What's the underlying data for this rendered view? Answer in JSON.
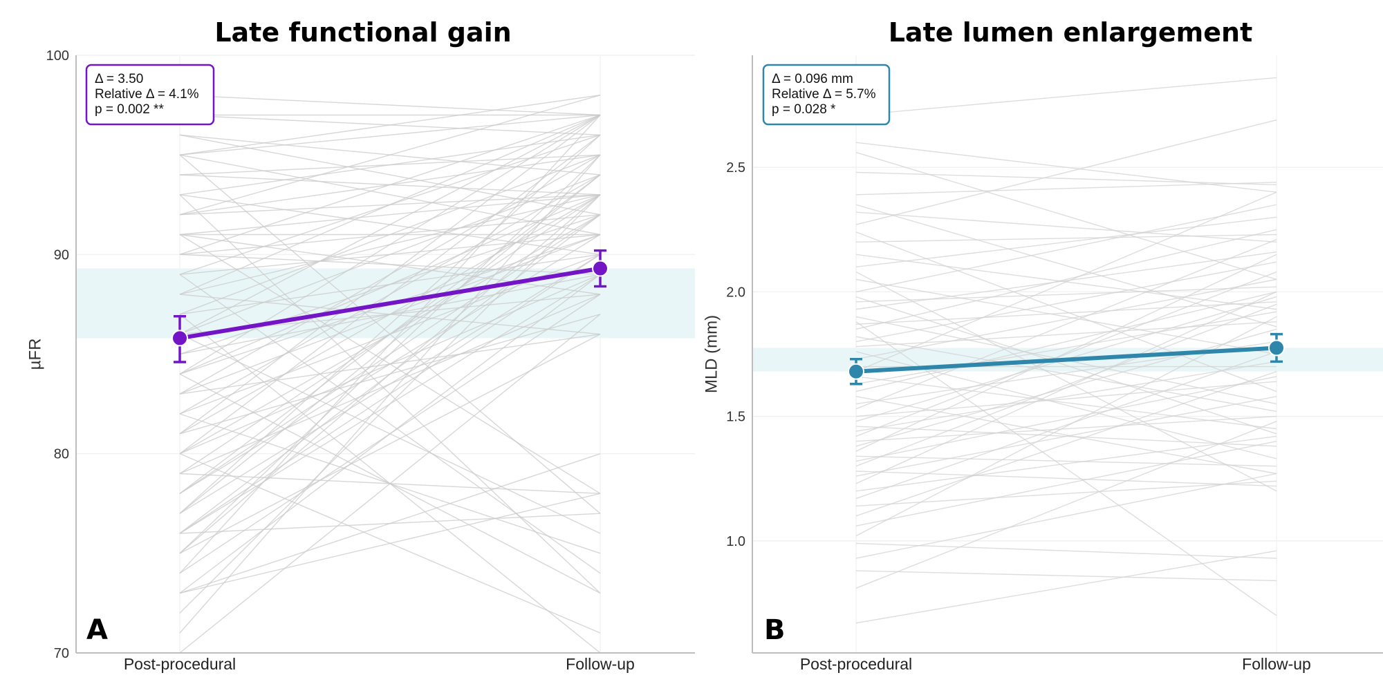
{
  "chart_data": [
    {
      "type": "line",
      "panel": "A",
      "title": "Late functional gain",
      "ylabel": "µFR",
      "xlabel": "",
      "categories": [
        "Post-procedural",
        "Follow-up"
      ],
      "ylim": [
        70,
        100
      ],
      "yticks": [
        70,
        80,
        90,
        100
      ],
      "grid": true,
      "colors": {
        "mean": "#7314c6",
        "band": "#e9f6f8",
        "individual": "#c9c9c9",
        "box": "#7314c6"
      },
      "mean_series": {
        "values": [
          85.8,
          89.3
        ],
        "ci_low": [
          84.6,
          88.4
        ],
        "ci_high": [
          86.9,
          90.2
        ]
      },
      "band": [
        85.8,
        89.3
      ],
      "stats": [
        "Δ = 3.50",
        "Relative Δ = 4.1%",
        "p = 0.002 **"
      ],
      "individual_lines": [
        [
          98,
          97
        ],
        [
          97,
          97
        ],
        [
          97,
          96
        ],
        [
          96,
          94
        ],
        [
          96,
          92
        ],
        [
          95,
          91
        ],
        [
          95,
          97
        ],
        [
          94,
          95
        ],
        [
          94,
          93
        ],
        [
          93,
          96
        ],
        [
          93,
          90
        ],
        [
          92,
          93
        ],
        [
          92,
          95
        ],
        [
          91,
          91
        ],
        [
          91,
          88
        ],
        [
          91,
          93
        ],
        [
          90,
          92
        ],
        [
          90,
          89
        ],
        [
          89,
          96
        ],
        [
          89,
          91
        ],
        [
          88,
          93
        ],
        [
          88,
          86
        ],
        [
          87,
          95
        ],
        [
          87,
          90
        ],
        [
          86,
          94
        ],
        [
          86,
          88
        ],
        [
          85,
          92
        ],
        [
          85,
          89
        ],
        [
          84,
          91
        ],
        [
          84,
          93
        ],
        [
          83,
          95
        ],
        [
          83,
          86
        ],
        [
          82,
          90
        ],
        [
          82,
          94
        ],
        [
          81,
          93
        ],
        [
          81,
          87
        ],
        [
          80,
          92
        ],
        [
          80,
          96
        ],
        [
          79,
          88
        ],
        [
          78,
          94
        ],
        [
          78,
          91
        ],
        [
          77,
          90
        ],
        [
          77,
          96
        ],
        [
          76,
          89
        ],
        [
          76,
          92
        ],
        [
          75,
          95
        ],
        [
          75,
          86
        ],
        [
          74,
          97
        ],
        [
          73,
          80
        ],
        [
          73,
          89
        ],
        [
          72,
          93
        ],
        [
          71,
          95
        ],
        [
          70,
          87
        ],
        [
          95,
          77
        ],
        [
          93,
          73
        ],
        [
          91,
          78
        ],
        [
          89,
          74
        ],
        [
          87,
          70
        ],
        [
          86,
          76
        ],
        [
          84,
          73
        ],
        [
          82,
          75
        ],
        [
          80,
          71
        ],
        [
          79,
          78
        ],
        [
          76,
          77
        ],
        [
          74,
          88
        ],
        [
          73,
          78
        ],
        [
          95,
          98
        ],
        [
          92,
          98
        ],
        [
          90,
          97
        ],
        [
          88,
          97
        ],
        [
          86,
          97
        ],
        [
          84,
          97
        ],
        [
          83,
          91
        ],
        [
          81,
          97
        ],
        [
          80,
          89
        ],
        [
          79,
          93
        ],
        [
          78,
          92
        ],
        [
          77,
          94
        ],
        [
          76,
          90
        ],
        [
          75,
          93
        ]
      ]
    },
    {
      "type": "line",
      "panel": "B",
      "title": "Late lumen enlargement",
      "ylabel": "MLD (mm)",
      "xlabel": "",
      "categories": [
        "Post-procedural",
        "Follow-up"
      ],
      "ylim": [
        0.55,
        2.95
      ],
      "yticks": [
        1.0,
        1.5,
        2.0,
        2.5
      ],
      "grid": true,
      "colors": {
        "mean": "#2e86ab",
        "band": "#e9f6f8",
        "individual": "#d2d2d2",
        "box": "#2e86ab"
      },
      "mean_series": {
        "values": [
          1.68,
          1.775
        ],
        "ci_low": [
          1.63,
          1.72
        ],
        "ci_high": [
          1.73,
          1.83
        ]
      },
      "band": [
        1.68,
        1.775
      ],
      "stats": [
        "Δ = 0.096 mm",
        "Relative Δ = 5.7%",
        "p = 0.028 *"
      ],
      "individual_lines": [
        [
          2.71,
          2.86
        ],
        [
          2.6,
          2.4
        ],
        [
          2.56,
          2.05
        ],
        [
          2.48,
          2.43
        ],
        [
          2.39,
          2.44
        ],
        [
          2.35,
          1.86
        ],
        [
          2.32,
          2.2
        ],
        [
          2.27,
          2.69
        ],
        [
          2.24,
          1.6
        ],
        [
          2.2,
          2.23
        ],
        [
          2.15,
          1.93
        ],
        [
          2.1,
          2.3
        ],
        [
          2.05,
          1.75
        ],
        [
          2.0,
          2.35
        ],
        [
          1.98,
          1.43
        ],
        [
          1.96,
          2.02
        ],
        [
          1.93,
          2.16
        ],
        [
          1.9,
          1.55
        ],
        [
          1.87,
          1.96
        ],
        [
          1.85,
          2.25
        ],
        [
          1.82,
          1.52
        ],
        [
          1.8,
          2.12
        ],
        [
          1.78,
          1.88
        ],
        [
          1.76,
          1.33
        ],
        [
          1.73,
          2.05
        ],
        [
          1.7,
          1.7
        ],
        [
          1.68,
          2.4
        ],
        [
          1.66,
          1.45
        ],
        [
          1.63,
          1.92
        ],
        [
          1.6,
          2.0
        ],
        [
          1.58,
          1.27
        ],
        [
          1.55,
          1.8
        ],
        [
          1.53,
          2.21
        ],
        [
          1.5,
          1.64
        ],
        [
          1.48,
          1.98
        ],
        [
          1.46,
          1.38
        ],
        [
          1.44,
          1.72
        ],
        [
          1.42,
          2.08
        ],
        [
          1.4,
          1.5
        ],
        [
          1.38,
          1.85
        ],
        [
          1.36,
          2.15
        ],
        [
          1.34,
          1.3
        ],
        [
          1.32,
          1.66
        ],
        [
          1.3,
          1.95
        ],
        [
          1.28,
          1.22
        ],
        [
          1.26,
          1.58
        ],
        [
          1.23,
          2.0
        ],
        [
          1.2,
          1.42
        ],
        [
          1.17,
          1.76
        ],
        [
          1.14,
          1.24
        ],
        [
          1.1,
          1.68
        ],
        [
          1.06,
          1.4
        ],
        [
          1.02,
          1.9
        ],
        [
          0.99,
          0.93
        ],
        [
          0.93,
          1.27
        ],
        [
          0.88,
          0.84
        ],
        [
          0.81,
          1.48
        ],
        [
          0.67,
          0.96
        ],
        [
          2.08,
          1.2
        ],
        [
          1.88,
          0.7
        ]
      ]
    }
  ]
}
